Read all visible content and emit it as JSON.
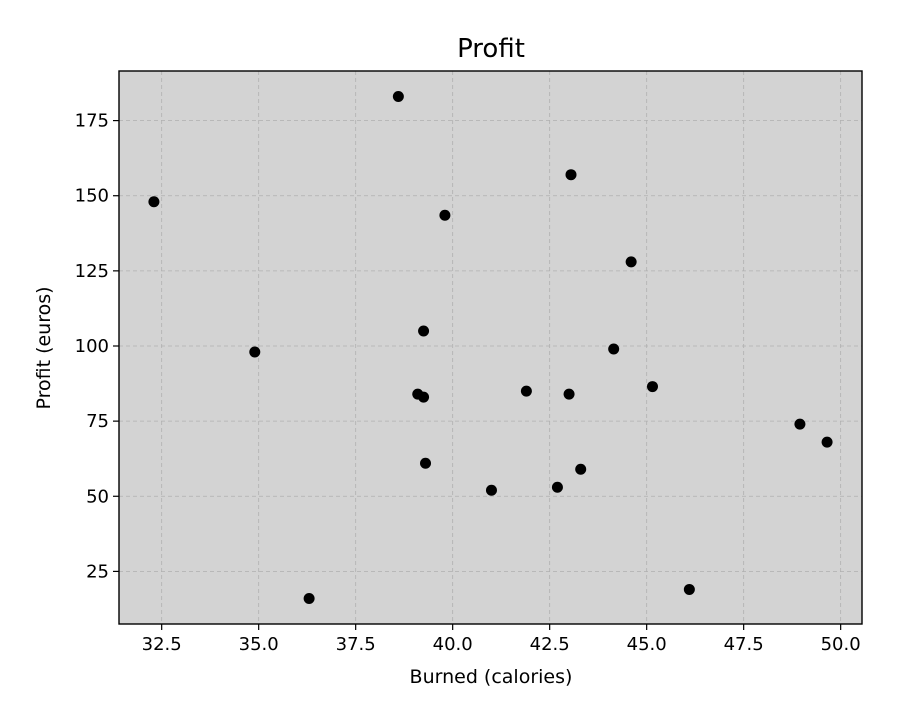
{
  "chart_data": {
    "type": "scatter",
    "title": "Profit",
    "xlabel": "Burned (calories)",
    "ylabel": "Profit (euros)",
    "xlim": [
      31.4,
      50.55
    ],
    "ylim": [
      7.5,
      191.5
    ],
    "xticks": [
      32.5,
      35.0,
      37.5,
      40.0,
      42.5,
      45.0,
      47.5,
      50.0
    ],
    "xtick_labels": [
      "32.5",
      "35.0",
      "37.5",
      "40.0",
      "42.5",
      "45.0",
      "47.5",
      "50.0"
    ],
    "yticks": [
      25,
      50,
      75,
      100,
      125,
      150,
      175
    ],
    "ytick_labels": [
      "25",
      "50",
      "75",
      "100",
      "125",
      "150",
      "175"
    ],
    "grid": true,
    "plot_background": "#d3d3d3",
    "marker_color": "#000000",
    "points": [
      {
        "x": 32.3,
        "y": 148
      },
      {
        "x": 34.9,
        "y": 98
      },
      {
        "x": 36.3,
        "y": 16
      },
      {
        "x": 38.6,
        "y": 183
      },
      {
        "x": 39.1,
        "y": 84
      },
      {
        "x": 39.25,
        "y": 83
      },
      {
        "x": 39.25,
        "y": 105
      },
      {
        "x": 39.3,
        "y": 61
      },
      {
        "x": 39.8,
        "y": 143.5
      },
      {
        "x": 41.0,
        "y": 52
      },
      {
        "x": 41.9,
        "y": 85
      },
      {
        "x": 42.7,
        "y": 53
      },
      {
        "x": 43.0,
        "y": 84
      },
      {
        "x": 43.05,
        "y": 157
      },
      {
        "x": 43.3,
        "y": 59
      },
      {
        "x": 44.15,
        "y": 99
      },
      {
        "x": 44.6,
        "y": 128
      },
      {
        "x": 45.15,
        "y": 86.5
      },
      {
        "x": 46.1,
        "y": 19
      },
      {
        "x": 48.95,
        "y": 74
      },
      {
        "x": 49.65,
        "y": 68
      }
    ]
  }
}
